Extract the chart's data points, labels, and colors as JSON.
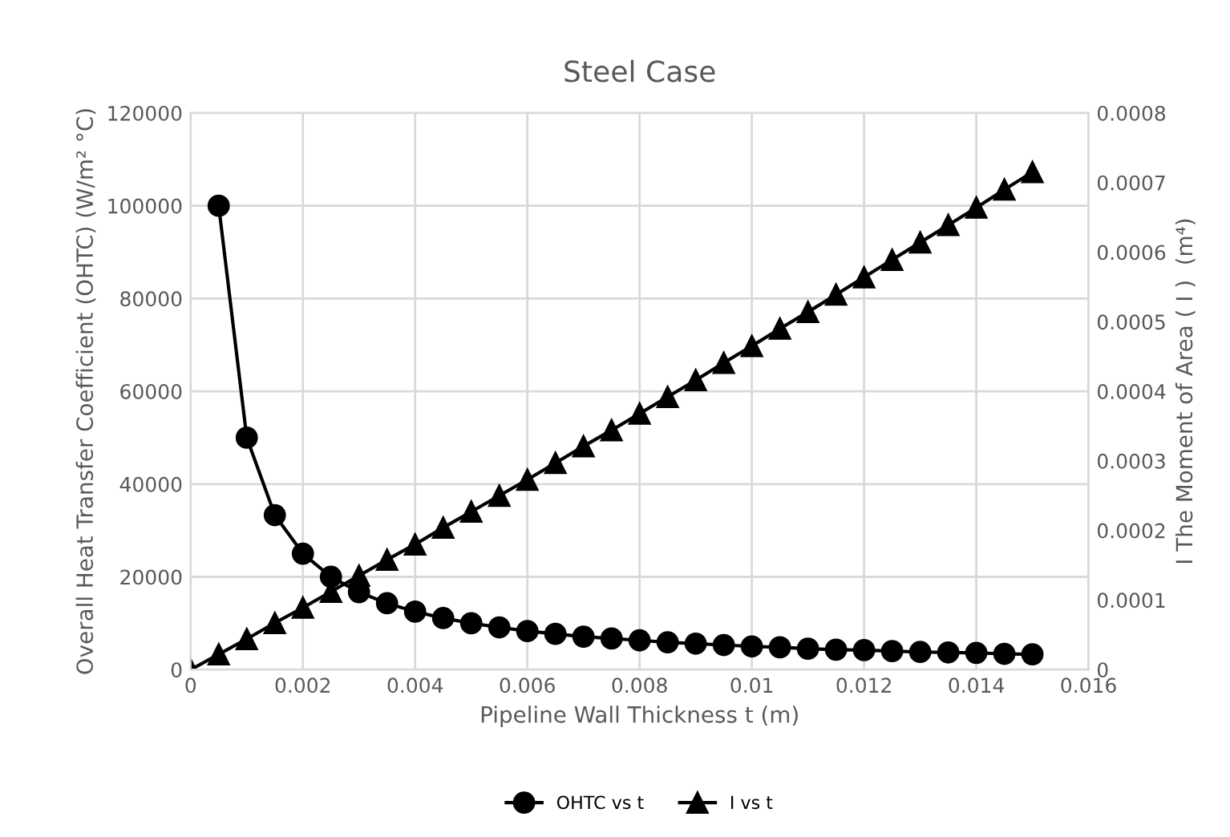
{
  "chart_data": {
    "type": "line",
    "title": "Steel Case",
    "xlabel": "Pipeline Wall Thickness t (m)",
    "ylabel": "Overall Heat Transfer Coefficient (OHTC) (W/m² °C)",
    "y2label": "I The Moment of Area ( I )  (m⁴)",
    "xlim": [
      0,
      0.016
    ],
    "xticks": [
      0,
      0.002,
      0.004,
      0.006,
      0.008,
      0.01,
      0.012,
      0.014,
      0.016
    ],
    "ylim": [
      0,
      120000
    ],
    "yticks": [
      0,
      20000,
      40000,
      60000,
      80000,
      100000,
      120000
    ],
    "y2lim": [
      0,
      0.0008
    ],
    "y2ticks": [
      0,
      0.0001,
      0.0002,
      0.0003,
      0.0004,
      0.0005,
      0.0006,
      0.0007,
      0.0008
    ],
    "grid": true,
    "legend": "bottom",
    "line_style": "solid",
    "series": [
      {
        "name": "OHTC vs t",
        "color": "#000000",
        "marker": "circle",
        "x": [
          0.0005,
          0.001,
          0.0015,
          0.002,
          0.0025,
          0.003,
          0.0035,
          0.004,
          0.0045,
          0.005,
          0.0055,
          0.006,
          0.0065,
          0.007,
          0.0075,
          0.008,
          0.0085,
          0.009,
          0.0095,
          0.01,
          0.0105,
          0.011,
          0.0115,
          0.012,
          0.0125,
          0.013,
          0.0135,
          0.014,
          0.0145,
          0.015
        ],
        "values": [
          100000,
          50000,
          33300,
          25000,
          20000,
          16700,
          14300,
          12500,
          11100,
          10000,
          9100,
          8300,
          7700,
          7100,
          6700,
          6300,
          5900,
          5600,
          5300,
          5000,
          4800,
          4500,
          4300,
          4200,
          4000,
          3800,
          3700,
          3600,
          3400,
          3300
        ]
      },
      {
        "name": "I vs t",
        "color": "#000000",
        "marker": "triangle",
        "axis": "y2",
        "x": [
          0,
          0.0005,
          0.001,
          0.0015,
          0.002,
          0.0025,
          0.003,
          0.0035,
          0.004,
          0.0045,
          0.005,
          0.0055,
          0.006,
          0.0065,
          0.007,
          0.0075,
          0.008,
          0.0085,
          0.009,
          0.0095,
          0.01,
          0.0105,
          0.011,
          0.0115,
          0.012,
          0.0125,
          0.013,
          0.0135,
          0.014,
          0.0145,
          0.015
        ],
        "values": [
          0,
          2.2e-05,
          4.4e-05,
          6.7e-05,
          8.9e-05,
          0.000112,
          0.000135,
          0.000158,
          0.00018,
          0.000204,
          0.000227,
          0.00025,
          0.000273,
          0.000297,
          0.000321,
          0.000344,
          0.000368,
          0.000392,
          0.000416,
          0.000441,
          0.000465,
          0.00049,
          0.000514,
          0.000539,
          0.000564,
          0.000589,
          0.000614,
          0.000639,
          0.000664,
          0.00069,
          0.000715
        ]
      }
    ]
  }
}
